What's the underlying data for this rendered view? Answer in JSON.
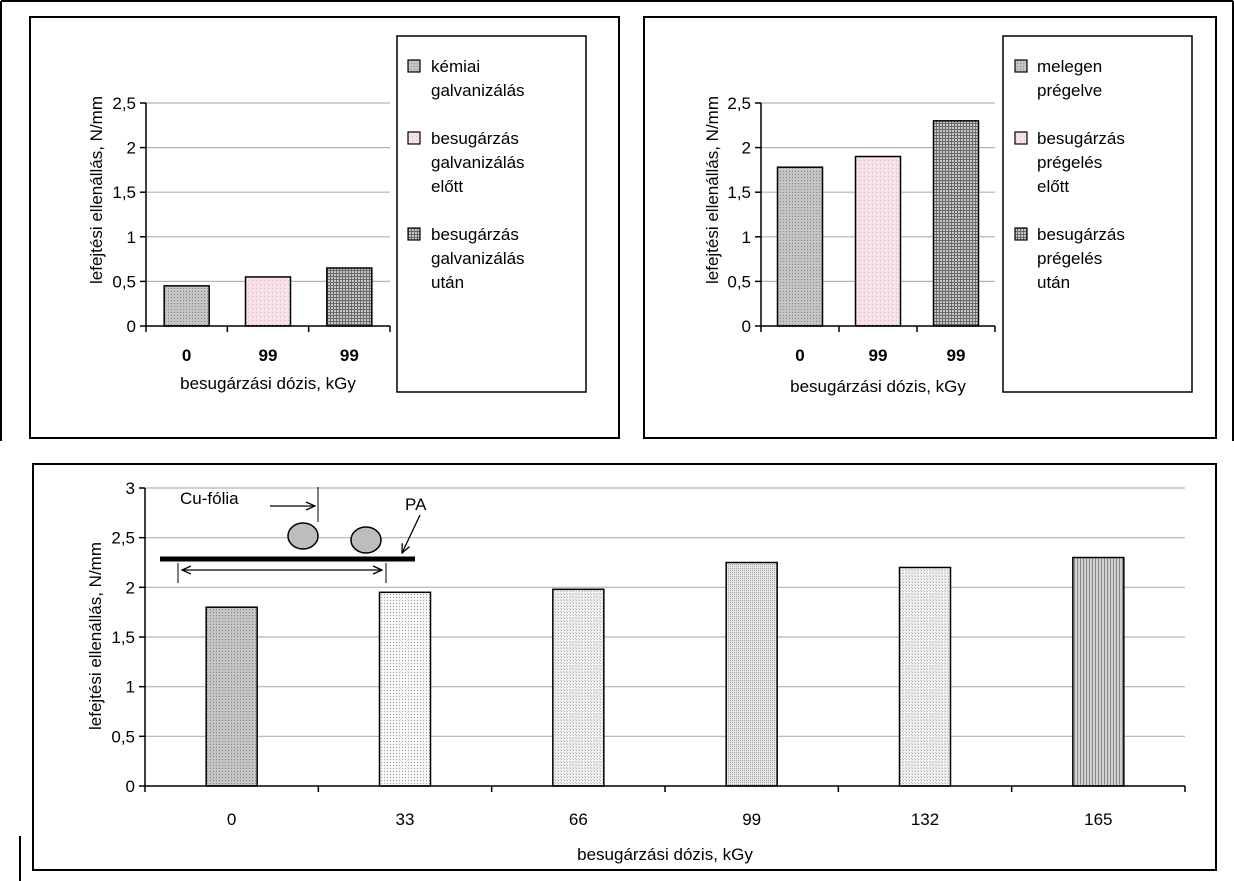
{
  "chart_data": [
    {
      "type": "bar",
      "categories": [
        "0",
        "99",
        "99"
      ],
      "values": [
        0.45,
        0.55,
        0.65
      ],
      "xlabel": "besugárzási dózis, kGy",
      "ylabel": "lefejtési ellenállás, N/mm",
      "ylim": [
        0,
        2.5
      ],
      "yticks": [
        "0",
        "0,5",
        "1",
        "1,5",
        "2",
        "2,5"
      ],
      "grid": true,
      "legend_position": "right",
      "legend": [
        [
          "kémiai",
          "galvanizálás"
        ],
        [
          "besugárzás",
          "galvanizálás",
          "előtt"
        ],
        [
          "besugárzás",
          "galvanizálás",
          "után"
        ]
      ]
    },
    {
      "type": "bar",
      "categories": [
        "0",
        "99",
        "99"
      ],
      "values": [
        1.78,
        1.9,
        2.3
      ],
      "xlabel": "besugárzási dózis, kGy",
      "ylabel": "lefejtési ellenállás, N/mm",
      "ylim": [
        0,
        2.5
      ],
      "yticks": [
        "0",
        "0,5",
        "1",
        "1,5",
        "2",
        "2,5"
      ],
      "grid": true,
      "legend_position": "right",
      "legend": [
        [
          "melegen",
          "prégelve"
        ],
        [
          "besugárzás",
          "prégelés",
          "előtt"
        ],
        [
          "besugárzás",
          "prégelés",
          "után"
        ]
      ]
    },
    {
      "type": "bar",
      "categories": [
        "0",
        "33",
        "66",
        "99",
        "132",
        "165"
      ],
      "values": [
        1.8,
        1.95,
        1.98,
        2.25,
        2.2,
        2.3
      ],
      "xlabel": "besugárzási dózis, kGy",
      "ylabel": "lefejtési ellenállás, N/mm",
      "ylim": [
        0,
        3
      ],
      "yticks": [
        "0",
        "0,5",
        "1",
        "1,5",
        "2",
        "2,5",
        "3"
      ],
      "grid": true,
      "annotations": [
        "Cu-fólia",
        "PA"
      ]
    }
  ],
  "colors": {
    "gray": "#bdbdbd",
    "pink": "#f4dde6",
    "checker_dark": "#777777",
    "light_dot": "#e4e4e4"
  }
}
